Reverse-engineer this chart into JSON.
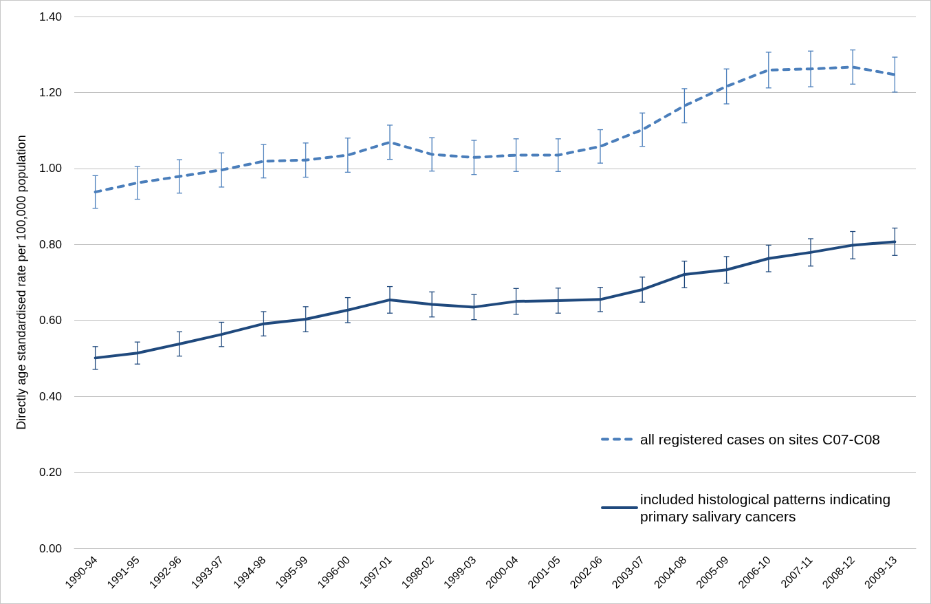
{
  "chart_data": {
    "type": "line",
    "ylabel": "Directly age standardised rate per 100,000 population",
    "categories": [
      "1990-94",
      "1991-95",
      "1992-96",
      "1993-97",
      "1994-98",
      "1995-99",
      "1996-00",
      "1997-01",
      "1998-02",
      "1999-03",
      "2000-04",
      "2001-05",
      "2002-06",
      "2003-07",
      "2004-08",
      "2005-09",
      "2006-10",
      "2007-11",
      "2008-12",
      "2009-13"
    ],
    "ylim": [
      0,
      1.4
    ],
    "yticks": [
      {
        "value": 0,
        "label": "0.00"
      },
      {
        "value": 0.2,
        "label": "0.20"
      },
      {
        "value": 0.4,
        "label": "0.40"
      },
      {
        "value": 0.6,
        "label": "0.60"
      },
      {
        "value": 0.8,
        "label": "0.80"
      },
      {
        "value": 1,
        "label": "1.00"
      },
      {
        "value": 1.2,
        "label": "1.20"
      },
      {
        "value": 1.4,
        "label": "1.40"
      }
    ],
    "grid": "y",
    "legend": "bottom right",
    "marker": "none",
    "series": [
      {
        "name": "all registered cases on sites C07-C08",
        "color": "#4a7ebb",
        "line_style": "dashed",
        "values": [
          0.938,
          0.962,
          0.979,
          0.996,
          1.019,
          1.022,
          1.035,
          1.069,
          1.037,
          1.029,
          1.035,
          1.035,
          1.058,
          1.102,
          1.165,
          1.216,
          1.259,
          1.262,
          1.267,
          1.247
        ],
        "errors": [
          0.043,
          0.043,
          0.044,
          0.045,
          0.044,
          0.045,
          0.045,
          0.045,
          0.044,
          0.045,
          0.043,
          0.043,
          0.044,
          0.044,
          0.045,
          0.046,
          0.047,
          0.047,
          0.045,
          0.046
        ]
      },
      {
        "name": "included histological patterns indicating primary salivary cancers",
        "color": "#1f497d",
        "line_style": "solid",
        "values": [
          0.501,
          0.514,
          0.538,
          0.563,
          0.591,
          0.603,
          0.627,
          0.654,
          0.642,
          0.635,
          0.65,
          0.652,
          0.655,
          0.681,
          0.721,
          0.733,
          0.763,
          0.779,
          0.798,
          0.807
        ],
        "errors": [
          0.03,
          0.029,
          0.032,
          0.032,
          0.032,
          0.033,
          0.033,
          0.035,
          0.033,
          0.033,
          0.034,
          0.033,
          0.032,
          0.033,
          0.035,
          0.035,
          0.035,
          0.036,
          0.036,
          0.036
        ]
      }
    ]
  }
}
